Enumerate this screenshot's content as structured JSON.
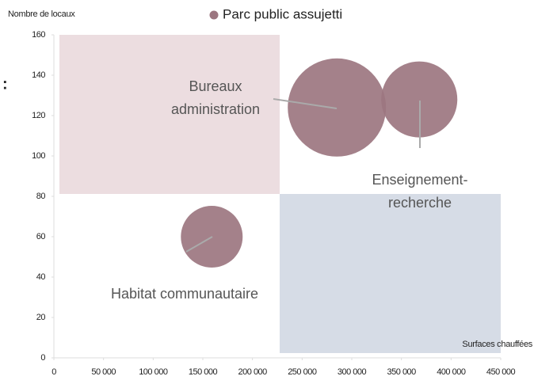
{
  "chart_data": {
    "type": "bubble",
    "side_mark": ":",
    "y_label": "Nombre de locaux",
    "x_label": "Surfaces chauffées",
    "xlim": [
      0,
      450000
    ],
    "xticks": [
      0,
      {
        "value": 50000,
        "label": "50 000"
      },
      {
        "value": 100000,
        "label": "100 000"
      },
      {
        "value": 150000,
        "label": "150 000"
      },
      {
        "value": 200000,
        "label": "200 000"
      },
      {
        "value": 250000,
        "label": "250 000"
      },
      {
        "value": 300000,
        "label": "300 000"
      },
      {
        "value": 350000,
        "label": "350 000"
      },
      {
        "value": 400000,
        "label": "400 000"
      },
      {
        "value": 450000,
        "label": "450 000"
      }
    ],
    "ylim": [
      0,
      160
    ],
    "yticks": [
      0,
      20,
      40,
      60,
      80,
      100,
      120,
      140,
      160
    ],
    "series": [
      {
        "name": "Parc public assujetti",
        "color": "#9c7680",
        "x": [
          285000,
          368000,
          159000
        ],
        "values": [
          124,
          128,
          60
        ],
        "sizes": [
          3844,
          2304,
          1521
        ],
        "labels": [
          [
            "Bureaux",
            "administration"
          ],
          [
            "Enseignement-",
            "recherche"
          ],
          [
            "Habitat communautaire"
          ]
        ]
      }
    ]
  }
}
